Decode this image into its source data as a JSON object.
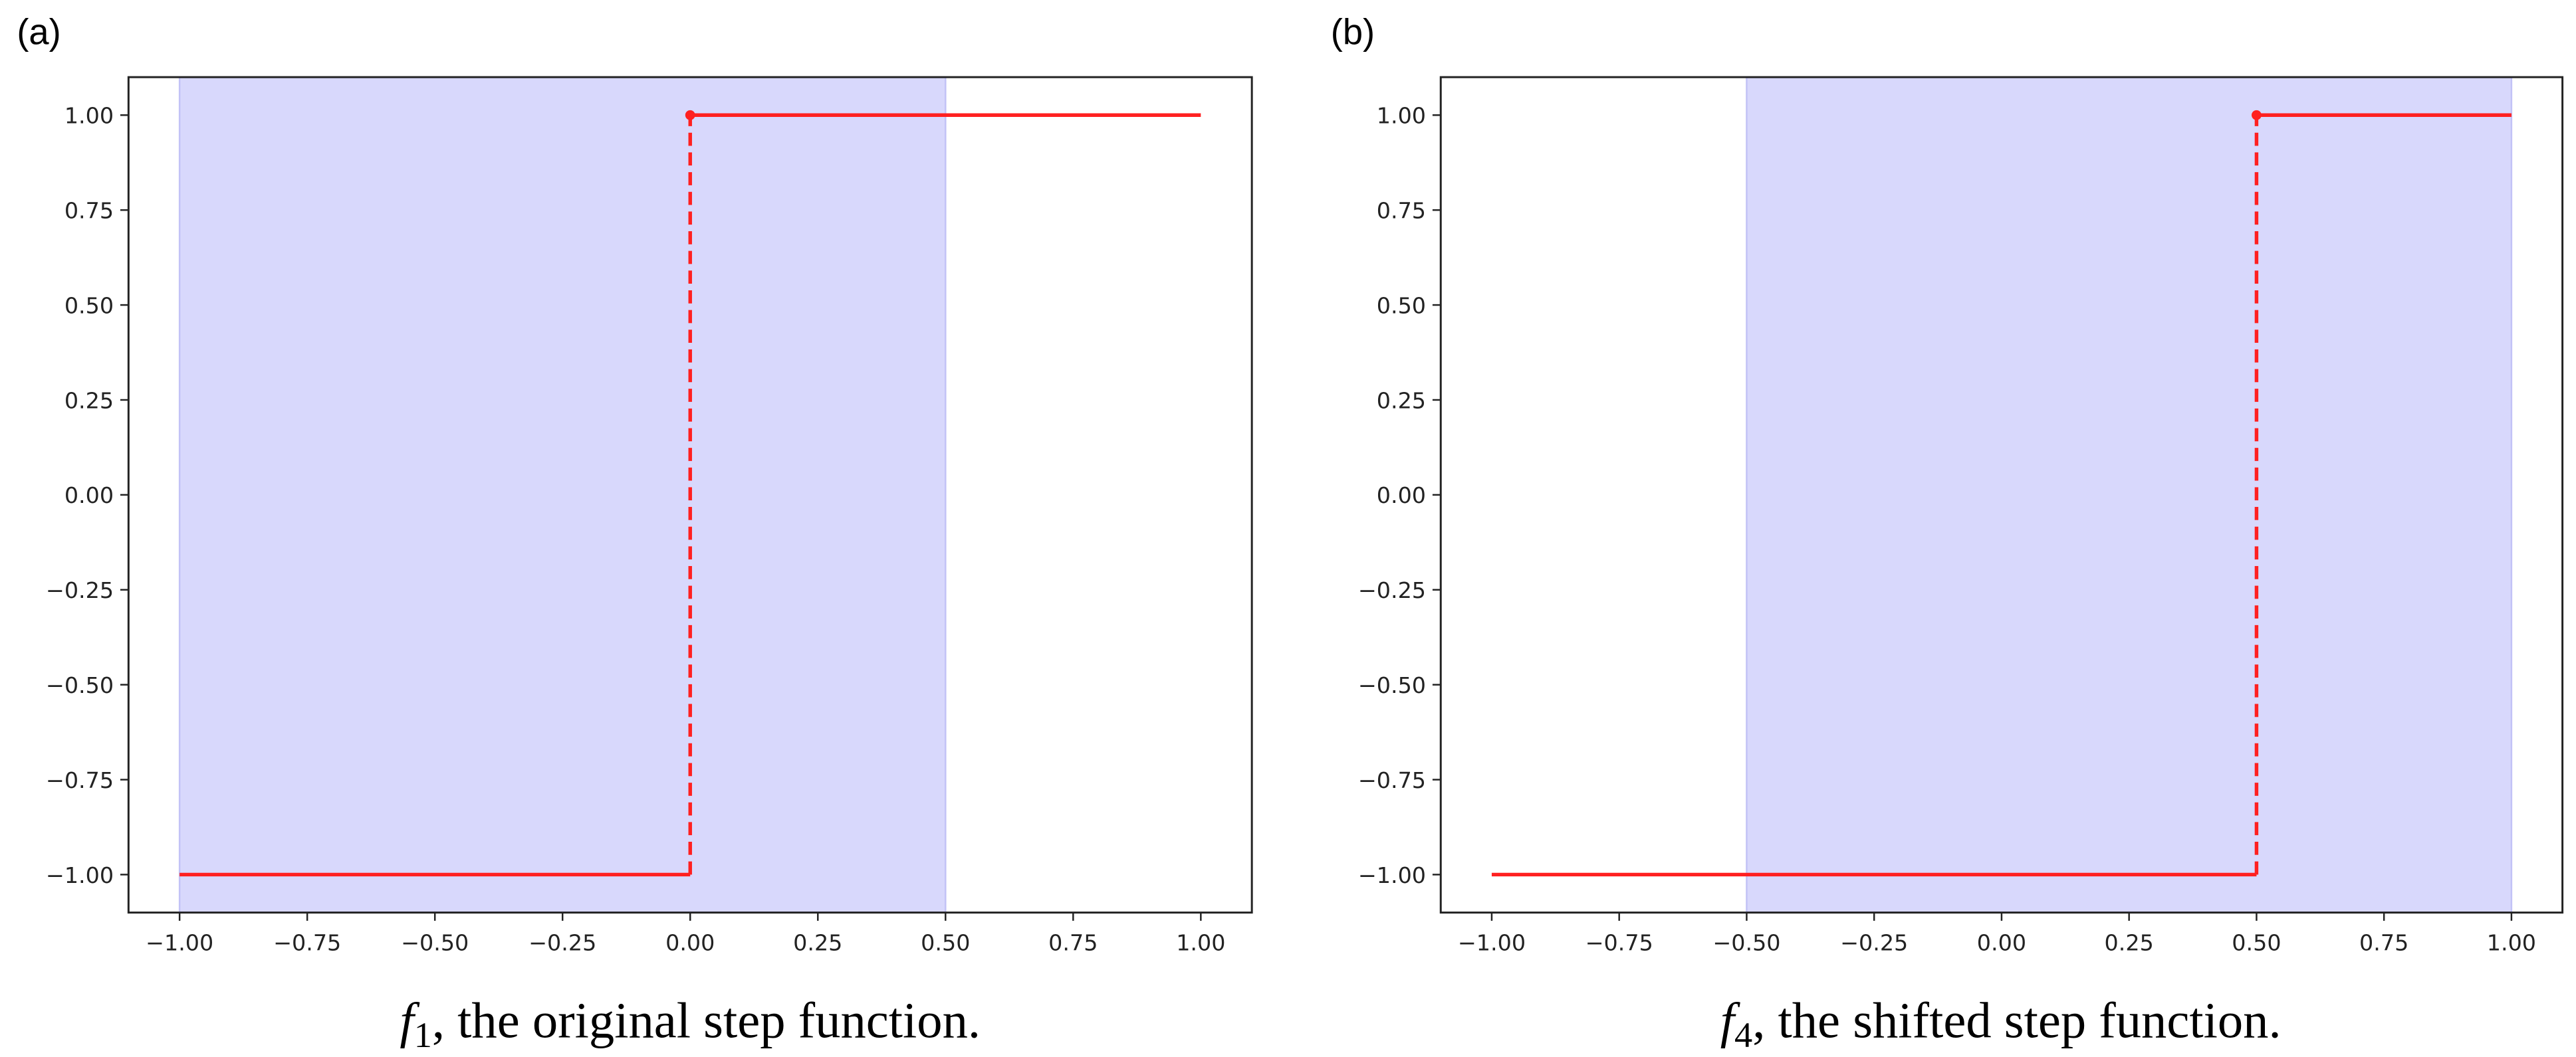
{
  "chart_data": [
    {
      "type": "line",
      "panel_label": "(a)",
      "caption": {
        "symbol": "f",
        "subscript": "1",
        "text": ", the original step function."
      },
      "xlim": [
        -1.1,
        1.1
      ],
      "ylim": [
        -1.1,
        1.1
      ],
      "xticks": [
        "−1.00",
        "−0.75",
        "−0.50",
        "−0.25",
        "0.00",
        "0.25",
        "0.50",
        "0.75",
        "1.00"
      ],
      "yticks": [
        "1.00",
        "0.75",
        "0.50",
        "0.25",
        "0.00",
        "−0.25",
        "−0.50",
        "−0.75",
        "−1.00"
      ],
      "xtick_values": [
        -1,
        -0.75,
        -0.5,
        -0.25,
        0,
        0.25,
        0.5,
        0.75,
        1
      ],
      "ytick_values": [
        1,
        0.75,
        0.5,
        0.25,
        0,
        -0.25,
        -0.5,
        -0.75,
        -1
      ],
      "shaded_region": [
        -1.0,
        0.5
      ],
      "segments": [
        {
          "x": [
            -1.0,
            0.0
          ],
          "y": [
            -1,
            -1
          ],
          "style": "solid"
        },
        {
          "x": [
            0.0,
            0.0
          ],
          "y": [
            -1,
            1
          ],
          "style": "dashed"
        },
        {
          "x": [
            0.0,
            1.0
          ],
          "y": [
            1,
            1
          ],
          "style": "solid"
        }
      ],
      "point": {
        "x": 0.0,
        "y": 1
      },
      "grid": false
    },
    {
      "type": "line",
      "panel_label": "(b)",
      "caption": {
        "symbol": "f",
        "subscript": "4",
        "text": ", the shifted step function."
      },
      "xlim": [
        -1.1,
        1.1
      ],
      "ylim": [
        -1.1,
        1.1
      ],
      "xticks": [
        "−1.00",
        "−0.75",
        "−0.50",
        "−0.25",
        "0.00",
        "0.25",
        "0.50",
        "0.75",
        "1.00"
      ],
      "yticks": [
        "1.00",
        "0.75",
        "0.50",
        "0.25",
        "0.00",
        "−0.25",
        "−0.50",
        "−0.75",
        "−1.00"
      ],
      "xtick_values": [
        -1,
        -0.75,
        -0.5,
        -0.25,
        0,
        0.25,
        0.5,
        0.75,
        1
      ],
      "ytick_values": [
        1,
        0.75,
        0.5,
        0.25,
        0,
        -0.25,
        -0.5,
        -0.75,
        -1
      ],
      "shaded_region": [
        -0.5,
        1.0
      ],
      "segments": [
        {
          "x": [
            -1.0,
            0.5
          ],
          "y": [
            -1,
            -1
          ],
          "style": "solid"
        },
        {
          "x": [
            0.5,
            0.5
          ],
          "y": [
            -1,
            1
          ],
          "style": "dashed"
        },
        {
          "x": [
            0.5,
            1.0
          ],
          "y": [
            1,
            1
          ],
          "style": "solid"
        }
      ],
      "point": {
        "x": 0.5,
        "y": 1
      },
      "grid": false
    }
  ],
  "colors": {
    "line": "#ff2020",
    "shade": "#d8d8fc",
    "shade_edge": "#c2c2f6",
    "axes": "#222222"
  }
}
